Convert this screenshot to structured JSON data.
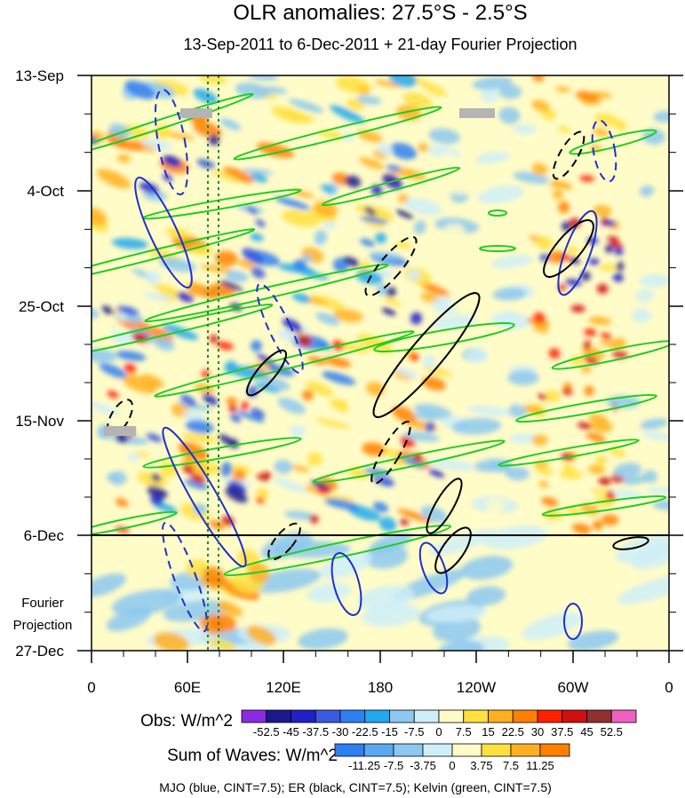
{
  "chart_data": {
    "type": "heatmap",
    "title": "OLR anomalies: 27.5°S - 2.5°S",
    "subtitle": "13-Sep-2011 to 6-Dec-2011 + 21-day Fourier Projection",
    "y_ticks": [
      "13-Sep",
      "4-Oct",
      "25-Oct",
      "15-Nov",
      "6-Dec",
      "27-Dec"
    ],
    "x_ticks": [
      "0",
      "60E",
      "120E",
      "180",
      "120W",
      "60W",
      "0"
    ],
    "projection_label_line1": "Fourier",
    "projection_label_line2": "Projection",
    "obs_legend": {
      "label": "Obs: W/m^2",
      "levels": [
        "-52.5",
        "-45",
        "-37.5",
        "-30",
        "-22.5",
        "-15",
        "-7.5",
        "0",
        "7.5",
        "15",
        "22.5",
        "30",
        "37.5",
        "45",
        "52.5"
      ],
      "colors": [
        "#8a2be2",
        "#1a1a8c",
        "#2020c8",
        "#3a5ae0",
        "#2e7ff0",
        "#20a8f0",
        "#8cc8f0",
        "#cfeef8",
        "#fffcc8",
        "#ffe040",
        "#ffb020",
        "#ff8000",
        "#ff2000",
        "#d01010",
        "#903030",
        "#f060c0"
      ]
    },
    "waves_legend": {
      "label": "Sum of Waves: W/m^2",
      "levels": [
        "-11.25",
        "-7.5",
        "-3.75",
        "0",
        "3.75",
        "7.5",
        "11.25"
      ],
      "colors": [
        "#2e7ff0",
        "#5aa8f0",
        "#8cc8f0",
        "#cfeef8",
        "#fffcc8",
        "#ffe040",
        "#ffb020",
        "#ff8000"
      ]
    },
    "footnote": "MJO (blue, CINT=7.5); ER (black, CINT=7.5); Kelvin (green, CINT=7.5)",
    "series_colors": {
      "mjo": "#1f2fd0",
      "er": "#000000",
      "kelvin": "#22cc22"
    },
    "reference_lines": {
      "color": "#228b22",
      "style": "dashed",
      "count": 2
    }
  }
}
